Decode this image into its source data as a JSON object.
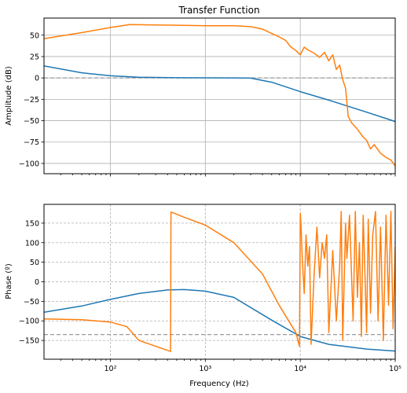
{
  "chart_data": [
    {
      "type": "line",
      "title": "Transfer Function",
      "xlabel": "",
      "ylabel": "Amplitude (dB)",
      "xscale": "log",
      "xlim": [
        20,
        100000
      ],
      "ylim": [
        -112,
        70
      ],
      "yticks": [
        50,
        25,
        0,
        -25,
        -50,
        -75,
        -100
      ],
      "ytick_labels": [
        "50",
        "25",
        "0",
        "−25",
        "−50",
        "−75",
        "−100"
      ],
      "xtick_labels_shown": false,
      "grid": "solid",
      "reference_line": {
        "y": 0,
        "style": "dashed",
        "color": "#999999"
      },
      "series": [
        {
          "color": "#1f77b4",
          "x": [
            20,
            50,
            100,
            200,
            500,
            1000,
            2000,
            3000,
            5000,
            10000,
            20000,
            50000,
            100000
          ],
          "y": [
            14,
            6,
            2.5,
            0.8,
            0.2,
            0.1,
            0.05,
            -0.2,
            -5,
            -16,
            -26,
            -40,
            -51
          ]
        },
        {
          "color": "#ff7f0e",
          "x": [
            20,
            50,
            100,
            160,
            300,
            600,
            1000,
            2000,
            3000,
            4000,
            5000,
            6000,
            7000,
            8000,
            9000,
            10000,
            11000,
            12000,
            14000,
            16000,
            18000,
            20000,
            22000,
            24000,
            26000,
            28000,
            30000,
            32000,
            35000,
            40000,
            45000,
            50000,
            55000,
            60000,
            70000,
            80000,
            90000,
            100000
          ],
          "y": [
            46,
            53,
            59,
            62.5,
            62,
            61.5,
            61,
            61,
            60,
            57,
            52,
            48,
            44,
            36,
            32,
            27,
            36,
            33,
            29,
            24,
            30,
            20,
            27,
            10,
            15,
            -2,
            -12,
            -45,
            -53,
            -60,
            -68,
            -73,
            -83,
            -78,
            -88,
            -93,
            -96,
            -103
          ]
        }
      ]
    },
    {
      "type": "line",
      "title": "",
      "xlabel": "Frequency (Hz)",
      "ylabel": "Phase (º)",
      "xscale": "log",
      "xlim": [
        20,
        100000
      ],
      "ylim": [
        -198,
        198
      ],
      "yticks": [
        150,
        100,
        50,
        0,
        -50,
        -100,
        -150
      ],
      "ytick_labels": [
        "150",
        "100",
        "50",
        "0",
        "−50",
        "−100",
        "−150"
      ],
      "xticks": [
        100,
        1000,
        10000,
        100000
      ],
      "xtick_labels": [
        "10²",
        "10³",
        "10⁴",
        "10⁵"
      ],
      "grid": "dashed",
      "reference_line": {
        "y": -135,
        "style": "dashed",
        "color": "#999999"
      },
      "series": [
        {
          "color": "#1f77b4",
          "x": [
            20,
            50,
            100,
            200,
            400,
            600,
            1000,
            2000,
            5000,
            10000,
            20000,
            50000,
            100000
          ],
          "y": [
            -78,
            -62,
            -45,
            -30,
            -21,
            -20,
            -24,
            -40,
            -98,
            -140,
            -160,
            -172,
            -177
          ]
        },
        {
          "color": "#ff7f0e",
          "x": [
            20,
            50,
            100,
            150,
            200,
            300,
            430,
            435,
            440,
            600,
            1000,
            2000,
            4000,
            6000,
            9000,
            9800,
            10000,
            10200,
            10500,
            11000,
            11500,
            12000,
            12500,
            13000,
            14000,
            15000,
            16000,
            17000,
            18000,
            19000,
            20000,
            22000,
            24000,
            26000,
            27000,
            28000,
            30000,
            31000,
            33000,
            36000,
            38000,
            40000,
            42000,
            44000,
            46000,
            48000,
            50000,
            52000,
            55000,
            58000,
            62000,
            66000,
            70000,
            75000,
            80000,
            85000,
            90000,
            95000,
            100000
          ],
          "y": [
            -95,
            -97,
            -103,
            -115,
            -150,
            -165,
            -178,
            178,
            178,
            165,
            145,
            100,
            20,
            -60,
            -130,
            -165,
            175,
            140,
            60,
            -30,
            120,
            40,
            90,
            -160,
            20,
            140,
            10,
            100,
            60,
            120,
            -130,
            80,
            -100,
            40,
            180,
            -150,
            150,
            60,
            170,
            -100,
            180,
            -40,
            100,
            -140,
            170,
            20,
            -130,
            160,
            -80,
            120,
            180,
            -100,
            140,
            -150,
            170,
            -60,
            180,
            -120,
            90
          ]
        }
      ]
    }
  ]
}
